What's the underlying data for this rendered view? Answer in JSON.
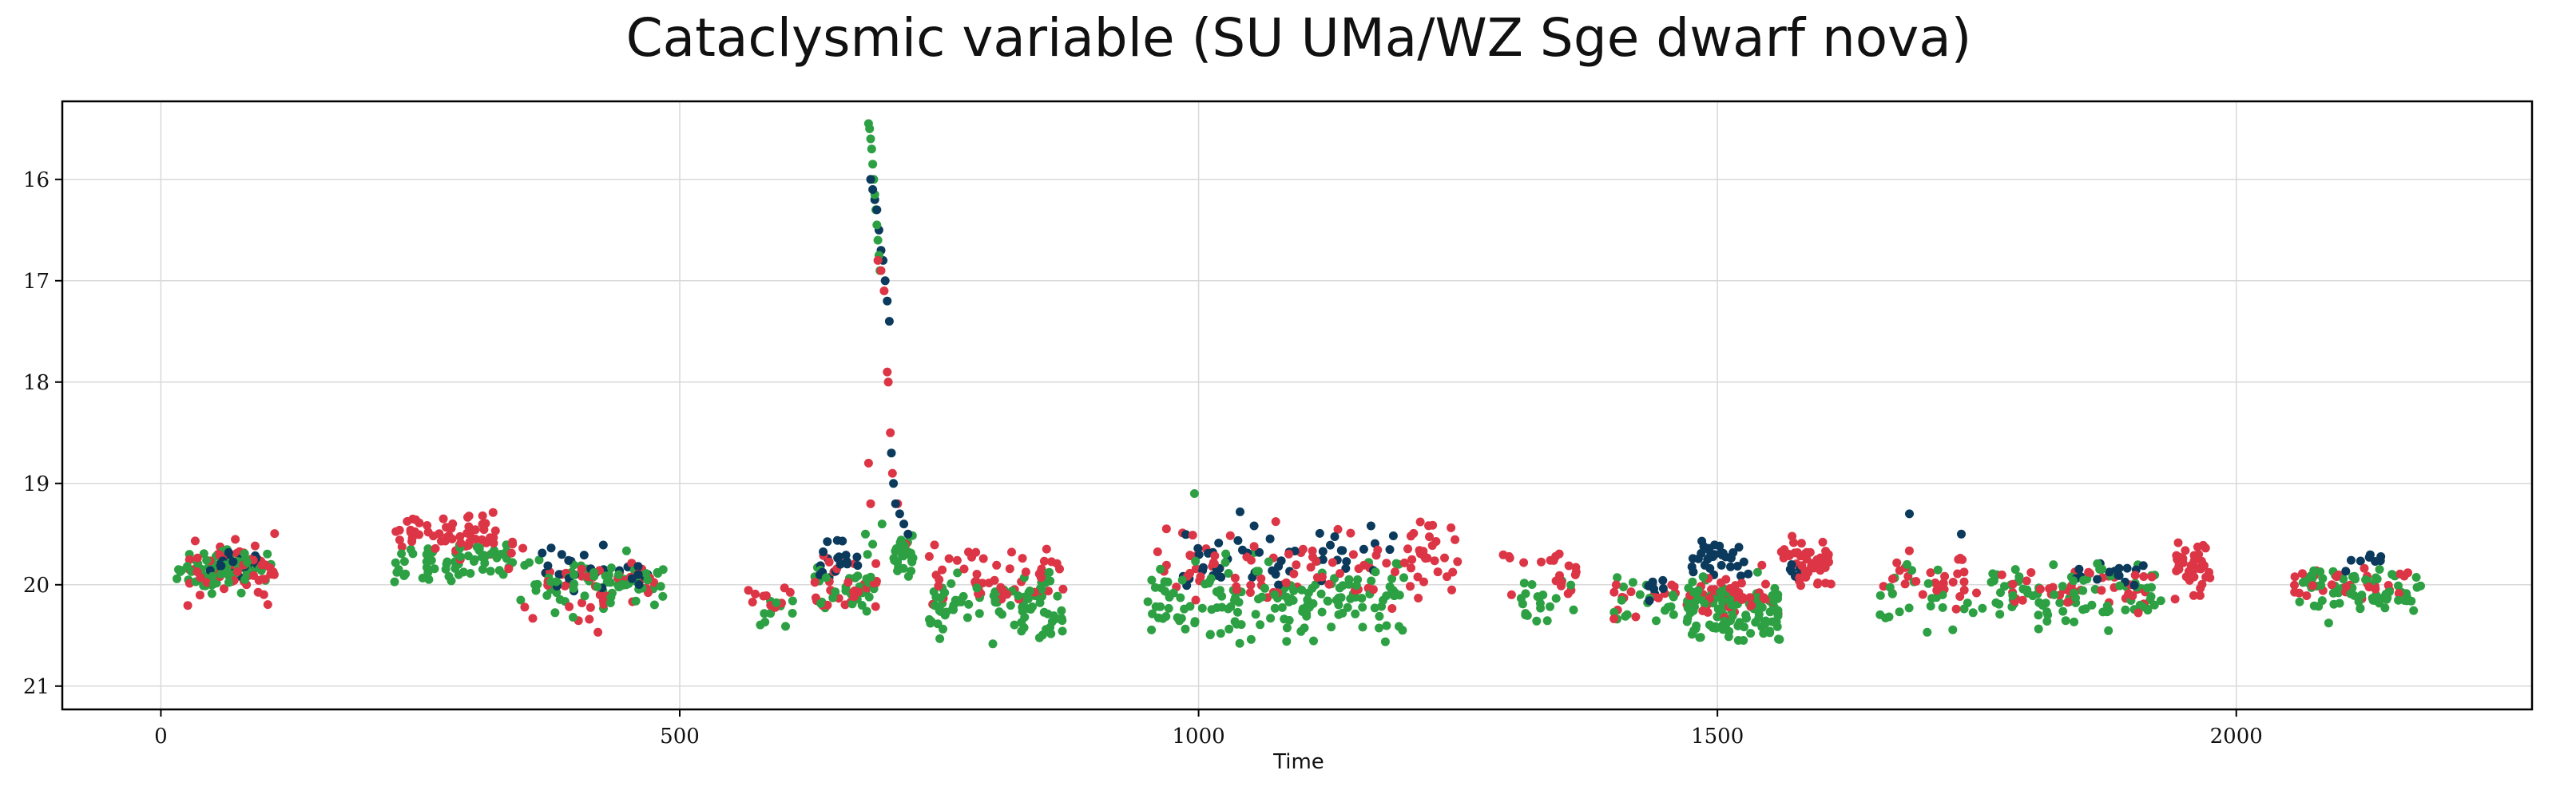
{
  "chart_data": {
    "type": "scatter",
    "title": "Cataclysmic variable (SU UMa/WZ Sge dwarf nova)",
    "xlabel": "Time",
    "ylabel": "",
    "xlim": [
      -95,
      2285
    ],
    "ylim": [
      15.23,
      21.23
    ],
    "y_inverted": true,
    "grid": true,
    "x_ticks": [
      0,
      500,
      1000,
      1500,
      2000
    ],
    "y_ticks": [
      16,
      17,
      18,
      19,
      20,
      21
    ],
    "series": [
      {
        "color": "#0b3a5c",
        "clusters": [
          {
            "x": [
              45,
              100
            ],
            "y": [
              19.6,
              20.0
            ],
            "n": 22
          },
          {
            "x": [
              360,
              470
            ],
            "y": [
              19.5,
              20.2
            ],
            "n": 26
          },
          {
            "x": [
              635,
              672
            ],
            "y": [
              19.4,
              20.1
            ],
            "n": 18
          },
          {
            "x": [
              985,
              1190
            ],
            "y": [
              19.3,
              20.2
            ],
            "n": 50
          },
          {
            "x": [
              1425,
              1450
            ],
            "y": [
              19.7,
              20.4
            ],
            "n": 8
          },
          {
            "x": [
              1475,
              1530
            ],
            "y": [
              19.5,
              20.0
            ],
            "n": 34
          },
          {
            "x": [
              1570,
              1590
            ],
            "y": [
              19.7,
              20.0
            ],
            "n": 6
          },
          {
            "x": [
              1840,
              1920
            ],
            "y": [
              19.7,
              20.1
            ],
            "n": 16
          },
          {
            "x": [
              2095,
              2145
            ],
            "y": [
              19.55,
              19.9
            ],
            "n": 8
          }
        ],
        "points": [
          {
            "x": 684,
            "y": 16.0
          },
          {
            "x": 686,
            "y": 16.1
          },
          {
            "x": 688,
            "y": 16.2
          },
          {
            "x": 690,
            "y": 16.3
          },
          {
            "x": 692,
            "y": 16.5
          },
          {
            "x": 694,
            "y": 16.7
          },
          {
            "x": 696,
            "y": 16.8
          },
          {
            "x": 698,
            "y": 17.0
          },
          {
            "x": 700,
            "y": 17.2
          },
          {
            "x": 702,
            "y": 17.4
          },
          {
            "x": 704,
            "y": 18.7
          },
          {
            "x": 706,
            "y": 19.0
          },
          {
            "x": 708,
            "y": 19.2
          },
          {
            "x": 712,
            "y": 19.3
          },
          {
            "x": 716,
            "y": 19.4
          },
          {
            "x": 720,
            "y": 19.5
          },
          {
            "x": 1685,
            "y": 19.3
          },
          {
            "x": 1735,
            "y": 19.5
          },
          {
            "x": 1040,
            "y": 19.28
          }
        ]
      },
      {
        "color": "#dc3545",
        "clusters": [
          {
            "x": [
              25,
              110
            ],
            "y": [
              19.4,
              20.3
            ],
            "n": 60
          },
          {
            "x": [
              225,
              340
            ],
            "y": [
              19.15,
              19.9
            ],
            "n": 60
          },
          {
            "x": [
              345,
              485
            ],
            "y": [
              19.6,
              20.5
            ],
            "n": 40
          },
          {
            "x": [
              565,
              610
            ],
            "y": [
              19.95,
              20.3
            ],
            "n": 10
          },
          {
            "x": [
              630,
              690
            ],
            "y": [
              19.6,
              20.4
            ],
            "n": 30
          },
          {
            "x": [
              740,
              870
            ],
            "y": [
              19.5,
              20.3
            ],
            "n": 50
          },
          {
            "x": [
              950,
              1200
            ],
            "y": [
              19.3,
              20.4
            ],
            "n": 70
          },
          {
            "x": [
              1200,
              1250
            ],
            "y": [
              19.2,
              20.3
            ],
            "n": 30
          },
          {
            "x": [
              1290,
              1365
            ],
            "y": [
              19.5,
              20.3
            ],
            "n": 20
          },
          {
            "x": [
              1400,
              1460
            ],
            "y": [
              19.8,
              20.5
            ],
            "n": 14
          },
          {
            "x": [
              1470,
              1560
            ],
            "y": [
              19.7,
              20.5
            ],
            "n": 40
          },
          {
            "x": [
              1560,
              1610
            ],
            "y": [
              19.45,
              20.1
            ],
            "n": 50
          },
          {
            "x": [
              1660,
              1760
            ],
            "y": [
              19.6,
              20.3
            ],
            "n": 30
          },
          {
            "x": [
              1770,
              1920
            ],
            "y": [
              19.7,
              20.4
            ],
            "n": 40
          },
          {
            "x": [
              1940,
              1975
            ],
            "y": [
              19.3,
              20.4
            ],
            "n": 36
          },
          {
            "x": [
              2055,
              2170
            ],
            "y": [
              19.75,
              20.2
            ],
            "n": 30
          }
        ],
        "points": [
          {
            "x": 691,
            "y": 16.8
          },
          {
            "x": 694,
            "y": 16.9
          },
          {
            "x": 697,
            "y": 17.1
          },
          {
            "x": 700,
            "y": 17.9
          },
          {
            "x": 701,
            "y": 18.0
          },
          {
            "x": 703,
            "y": 18.5
          },
          {
            "x": 705,
            "y": 18.9
          },
          {
            "x": 682,
            "y": 18.8
          },
          {
            "x": 684,
            "y": 19.2
          },
          {
            "x": 710,
            "y": 19.2
          },
          {
            "x": 718,
            "y": 19.6
          }
        ]
      },
      {
        "color": "#2ca042",
        "clusters": [
          {
            "x": [
              10,
              110
            ],
            "y": [
              19.5,
              20.25
            ],
            "n": 60
          },
          {
            "x": [
              225,
              340
            ],
            "y": [
              19.45,
              20.1
            ],
            "n": 60
          },
          {
            "x": [
              345,
              485
            ],
            "y": [
              19.6,
              20.45
            ],
            "n": 70
          },
          {
            "x": [
              575,
              615
            ],
            "y": [
              20.0,
              20.5
            ],
            "n": 10
          },
          {
            "x": [
              630,
              690
            ],
            "y": [
              19.6,
              20.45
            ],
            "n": 30
          },
          {
            "x": [
              705,
              725
            ],
            "y": [
              19.4,
              20.0
            ],
            "n": 30
          },
          {
            "x": [
              740,
              870
            ],
            "y": [
              19.7,
              20.7
            ],
            "n": 90
          },
          {
            "x": [
              945,
              1200
            ],
            "y": [
              19.6,
              20.7
            ],
            "n": 160
          },
          {
            "x": [
              1310,
              1370
            ],
            "y": [
              19.8,
              20.5
            ],
            "n": 20
          },
          {
            "x": [
              1400,
              1460
            ],
            "y": [
              19.8,
              20.6
            ],
            "n": 20
          },
          {
            "x": [
              1470,
              1560
            ],
            "y": [
              19.8,
              20.7
            ],
            "n": 110
          },
          {
            "x": [
              1650,
              1790
            ],
            "y": [
              19.7,
              20.6
            ],
            "n": 40
          },
          {
            "x": [
              1790,
              1930
            ],
            "y": [
              19.6,
              20.6
            ],
            "n": 70
          },
          {
            "x": [
              2060,
              2180
            ],
            "y": [
              19.7,
              20.4
            ],
            "n": 70
          }
        ],
        "points": [
          {
            "x": 682,
            "y": 15.45
          },
          {
            "x": 683,
            "y": 15.5
          },
          {
            "x": 684,
            "y": 15.6
          },
          {
            "x": 685,
            "y": 15.7
          },
          {
            "x": 686,
            "y": 15.85
          },
          {
            "x": 687,
            "y": 16.0
          },
          {
            "x": 688,
            "y": 16.15
          },
          {
            "x": 689,
            "y": 16.3
          },
          {
            "x": 690,
            "y": 16.45
          },
          {
            "x": 691,
            "y": 16.6
          },
          {
            "x": 692,
            "y": 16.75
          },
          {
            "x": 693,
            "y": 16.9
          },
          {
            "x": 679,
            "y": 19.5
          },
          {
            "x": 681,
            "y": 19.7
          },
          {
            "x": 686,
            "y": 19.6
          },
          {
            "x": 695,
            "y": 19.4
          },
          {
            "x": 996,
            "y": 19.1
          }
        ]
      }
    ]
  }
}
